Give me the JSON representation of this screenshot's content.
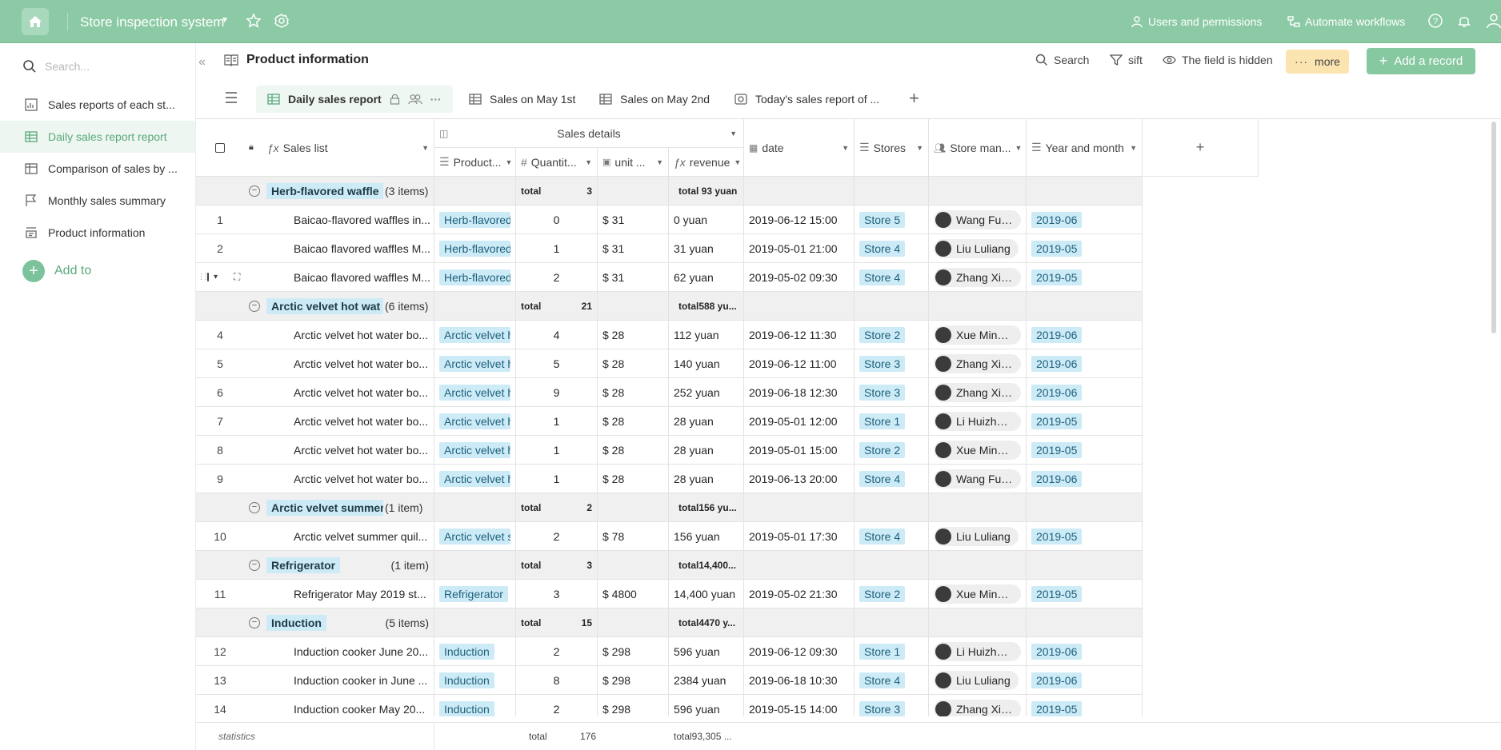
{
  "app": {
    "title": "Store inspection system"
  },
  "topbar": {
    "users_label": "Users and permissions",
    "workflows_label": "Automate workflows"
  },
  "sidebar": {
    "search_placeholder": "Search...",
    "items": [
      {
        "label": "Sales reports of each st...",
        "icon": "report-icon",
        "active": false
      },
      {
        "label": "Daily sales report report",
        "icon": "table-icon",
        "active": true
      },
      {
        "label": "Comparison of sales by ...",
        "icon": "table-icon",
        "active": false
      },
      {
        "label": "Monthly sales summary",
        "icon": "flag-icon",
        "active": false
      },
      {
        "label": "Product information",
        "icon": "form-icon",
        "active": false
      }
    ],
    "add_label": "Add to"
  },
  "header": {
    "title": "Product information",
    "search_label": "Search",
    "sift_label": "sift",
    "hidden_label": "The field is hidden",
    "more_label": "more",
    "add_record_label": "Add a record"
  },
  "tabs": [
    {
      "label": "Daily sales report",
      "active": true
    },
    {
      "label": "Sales on May 1st",
      "active": false
    },
    {
      "label": "Sales on May 2nd",
      "active": false
    },
    {
      "label": "Today's sales report of ...",
      "active": false
    }
  ],
  "columns": {
    "group_header": "Sales details",
    "sales_list": "Sales list",
    "product": "Product...",
    "quantity": "Quantit...",
    "unit": "unit ...",
    "revenue": "revenue",
    "date": "date",
    "stores": "Stores",
    "store_manager": "Store man...",
    "year_month": "Year and month",
    "add": "+"
  },
  "rows": [
    {
      "type": "group",
      "name": "Herb-flavored waffle",
      "count": "(3 items)",
      "total_label": "total",
      "total_qty": "3",
      "total_rev": "total  93 yuan"
    },
    {
      "type": "row",
      "num": "1",
      "sales": "Baicao-flavored waffles in...",
      "product": "Herb-flavored",
      "qty": "0",
      "unit": "$ 31",
      "rev": "0 yuan",
      "date": "2019-06-12 15:00",
      "store": "Store 5",
      "manager": "Wang Fuyan",
      "ym": "2019-06"
    },
    {
      "type": "row",
      "num": "2",
      "sales": "Baicao flavored waffles M...",
      "product": "Herb-flavored",
      "qty": "1",
      "unit": "$ 31",
      "rev": "31 yuan",
      "date": "2019-05-01 21:00",
      "store": "Store 4",
      "manager": "Liu Luliang",
      "ym": "2019-05"
    },
    {
      "type": "row",
      "num": "",
      "hover": true,
      "sales": "Baicao flavored waffles M...",
      "product": "Herb-flavored",
      "qty": "2",
      "unit": "$ 31",
      "rev": "62 yuan",
      "date": "2019-05-02 09:30",
      "store": "Store 4",
      "manager": "Zhang Xiu...",
      "ym": "2019-05"
    },
    {
      "type": "group",
      "name": "Arctic velvet hot wat",
      "count": "(6 items)",
      "total_label": "total",
      "total_qty": "21",
      "total_rev": "total588 yu..."
    },
    {
      "type": "row",
      "num": "4",
      "sales": "Arctic velvet hot water bo...",
      "product": "Arctic velvet h",
      "qty": "4",
      "unit": "$ 28",
      "rev": "112 yuan",
      "date": "2019-06-12 11:30",
      "store": "Store 2",
      "manager": "Xue Mingc...",
      "ym": "2019-06"
    },
    {
      "type": "row",
      "num": "5",
      "sales": "Arctic velvet hot water bo...",
      "product": "Arctic velvet h",
      "qty": "5",
      "unit": "$ 28",
      "rev": "140 yuan",
      "date": "2019-06-12 11:00",
      "store": "Store 3",
      "manager": "Zhang Xiu...",
      "ym": "2019-06"
    },
    {
      "type": "row",
      "num": "6",
      "sales": "Arctic velvet hot water bo...",
      "product": "Arctic velvet h",
      "qty": "9",
      "unit": "$ 28",
      "rev": "252 yuan",
      "date": "2019-06-18 12:30",
      "store": "Store 3",
      "manager": "Zhang Xiu...",
      "ym": "2019-06"
    },
    {
      "type": "row",
      "num": "7",
      "sales": "Arctic velvet hot water bo...",
      "product": "Arctic velvet h",
      "qty": "1",
      "unit": "$ 28",
      "rev": "28 yuan",
      "date": "2019-05-01 12:00",
      "store": "Store 1",
      "manager": "Li Huizhong",
      "ym": "2019-05"
    },
    {
      "type": "row",
      "num": "8",
      "sales": "Arctic velvet hot water bo...",
      "product": "Arctic velvet h",
      "qty": "1",
      "unit": "$ 28",
      "rev": "28 yuan",
      "date": "2019-05-01 15:00",
      "store": "Store 2",
      "manager": "Xue Mingc...",
      "ym": "2019-05"
    },
    {
      "type": "row",
      "num": "9",
      "sales": "Arctic velvet hot water bo...",
      "product": "Arctic velvet h",
      "qty": "1",
      "unit": "$ 28",
      "rev": "28 yuan",
      "date": "2019-06-13 20:00",
      "store": "Store 4",
      "manager": "Wang Fuyan",
      "ym": "2019-06"
    },
    {
      "type": "group",
      "name": "Arctic velvet summer",
      "count": "(1 item)",
      "total_label": "total",
      "total_qty": "2",
      "total_rev": "total156 yu..."
    },
    {
      "type": "row",
      "num": "10",
      "sales": "Arctic velvet summer quil...",
      "product": "Arctic velvet su",
      "qty": "2",
      "unit": "$ 78",
      "rev": "156 yuan",
      "date": "2019-05-01 17:30",
      "store": "Store 4",
      "manager": "Liu Luliang",
      "ym": "2019-05"
    },
    {
      "type": "group",
      "name": "Refrigerator",
      "count": "(1 item)",
      "total_label": "total",
      "total_qty": "3",
      "total_rev": "total14,400..."
    },
    {
      "type": "row",
      "num": "11",
      "sales": "Refrigerator May 2019 st...",
      "product": "Refrigerator",
      "qty": "3",
      "unit": "$ 4800",
      "rev": "14,400 yuan",
      "date": "2019-05-02 21:30",
      "store": "Store 2",
      "manager": "Xue Mingc...",
      "ym": "2019-05"
    },
    {
      "type": "group",
      "name": "Induction",
      "count": "(5 items)",
      "total_label": "total",
      "total_qty": "15",
      "total_rev": "total4470 y..."
    },
    {
      "type": "row",
      "num": "12",
      "sales": "Induction cooker June 20...",
      "product": "Induction",
      "qty": "2",
      "unit": "$ 298",
      "rev": "596 yuan",
      "date": "2019-06-12 09:30",
      "store": "Store 1",
      "manager": "Li Huizhong",
      "ym": "2019-06"
    },
    {
      "type": "row",
      "num": "13",
      "sales": "Induction cooker in June ...",
      "product": "Induction",
      "qty": "8",
      "unit": "$ 298",
      "rev": "2384 yuan",
      "date": "2019-06-18 10:30",
      "store": "Store 4",
      "manager": "Liu Luliang",
      "ym": "2019-06"
    },
    {
      "type": "row",
      "num": "14",
      "sales": "Induction cooker May 20...",
      "product": "Induction",
      "qty": "2",
      "unit": "$ 298",
      "rev": "596 yuan",
      "date": "2019-05-15 14:00",
      "store": "Store 3",
      "manager": "Zhang Xiu...",
      "ym": "2019-05"
    }
  ],
  "footer": {
    "statistics": "statistics",
    "total_label": "total",
    "total_qty": "176",
    "total_rev": "total93,305 ..."
  },
  "colors": {
    "topbar": "#8ccaa6",
    "accent": "#5aa97c",
    "tag_bg": "#cdebf7",
    "more_bg": "#fbe4b0"
  }
}
